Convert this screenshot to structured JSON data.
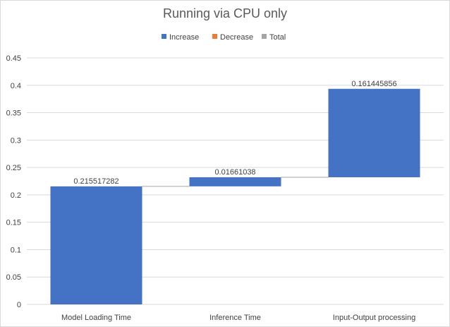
{
  "chart_data": {
    "type": "bar",
    "subtype": "waterfall",
    "title": "Running via CPU only",
    "categories": [
      "Model Loading Time",
      "Inference Time",
      "Input-Output processing"
    ],
    "values": [
      0.215517282,
      0.01661038,
      0.161445856
    ],
    "data_labels": [
      "0.215517282",
      "0.01661038",
      "0.161445856"
    ],
    "legend": {
      "placement": "top",
      "entries": [
        {
          "label": "Increase",
          "color": "#4472c4"
        },
        {
          "label": "Decrease",
          "color": "#ed7d31"
        },
        {
          "label": "Total",
          "color": "#a5a5a5"
        }
      ]
    },
    "ylim": [
      0,
      0.45
    ],
    "yticks": [
      "0",
      "0.05",
      "0.1",
      "0.15",
      "0.2",
      "0.25",
      "0.3",
      "0.35",
      "0.4",
      "0.45"
    ],
    "ytick_values": [
      0,
      0.05,
      0.1,
      0.15,
      0.2,
      0.25,
      0.3,
      0.35,
      0.4,
      0.45
    ],
    "grid": true,
    "bar_color": "#4472c4"
  }
}
